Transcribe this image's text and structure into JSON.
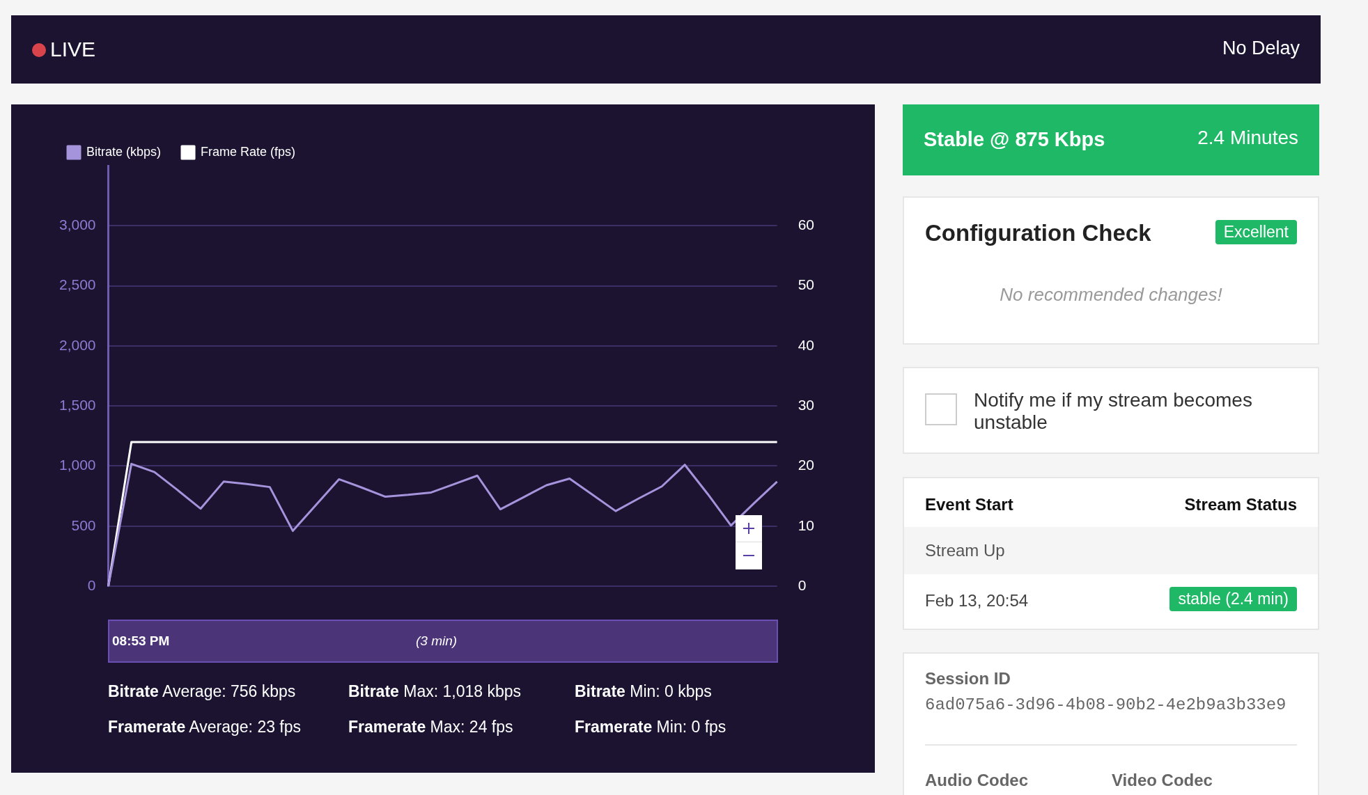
{
  "chart_data": [
    {
      "type": "other",
      "annotations": [
        "LIVE",
        "No Delay"
      ]
    },
    {
      "type": "line",
      "categories": [
        null,
        null,
        null,
        null,
        null,
        null,
        null,
        null,
        null,
        null,
        null,
        null,
        null,
        null,
        null,
        null,
        null,
        null,
        null,
        null,
        null,
        null,
        null,
        null,
        null,
        null,
        null,
        null,
        null,
        null
      ],
      "series": [
        {
          "name": "Bitrate (kbps)",
          "color": "#a593dc",
          "values": [
            0,
            1018,
            950,
            800,
            645,
            870,
            850,
            825,
            460,
            675,
            890,
            820,
            745,
            760,
            780,
            850,
            920,
            640,
            740,
            840,
            895,
            760,
            625,
            730,
            830,
            1010,
            765,
            505,
            690,
            870
          ]
        },
        {
          "name": "Frame Rate (fps)",
          "color": "#ffffff",
          "axis": "y2",
          "values": [
            0,
            24,
            24,
            24,
            24,
            24,
            24,
            24,
            24,
            24,
            24,
            24,
            24,
            24,
            24,
            24,
            24,
            24,
            24,
            24,
            24,
            24,
            24,
            24,
            24,
            24,
            24,
            24,
            24,
            24
          ]
        }
      ],
      "ylim": [
        0,
        3500
      ],
      "yticks": [
        0,
        {
          "value": 500,
          "label": "500"
        },
        {
          "value": 1000,
          "label": "1,000"
        },
        {
          "value": 1500,
          "label": "1,500"
        },
        {
          "value": 2000,
          "label": "2,000"
        },
        {
          "value": 2500,
          "label": "2,500"
        },
        {
          "value": 3000,
          "label": "3,000"
        }
      ],
      "y2lim": [
        0,
        70
      ],
      "y2ticks": [
        0,
        10,
        20,
        30,
        40,
        50,
        60
      ],
      "grid": "y",
      "legend": "top left",
      "annotations": [
        "08:53 PM",
        "(3 min)",
        "Bitrate Average: 756 kbps",
        "Bitrate Max: 1,018 kbps",
        "Bitrate Min: 0 kbps",
        "Framerate Average: 23 fps",
        "Framerate Max: 24 fps",
        "Framerate Min: 0 fps"
      ]
    },
    {
      "type": "other",
      "title": "Stable @ 875 Kbps",
      "annotations": [
        "2.4 Minutes"
      ]
    },
    {
      "type": "other",
      "title": "Configuration Check",
      "annotations": [
        "Excellent",
        "No recommended changes!"
      ]
    },
    {
      "type": "other",
      "annotations": [
        "Notify me if my stream becomes unstable"
      ]
    },
    {
      "type": "other",
      "annotations": [
        "Event Start",
        "Stream Status",
        "Stream Up",
        "Feb 13, 20:54",
        "stable (2.4 min)"
      ]
    },
    {
      "type": "other",
      "annotations": [
        "Session ID",
        "6ad075a6-3d96-4b08-90b2-4e2b9a3b33e9",
        "Audio Codec",
        "Video Codec"
      ]
    }
  ]
}
